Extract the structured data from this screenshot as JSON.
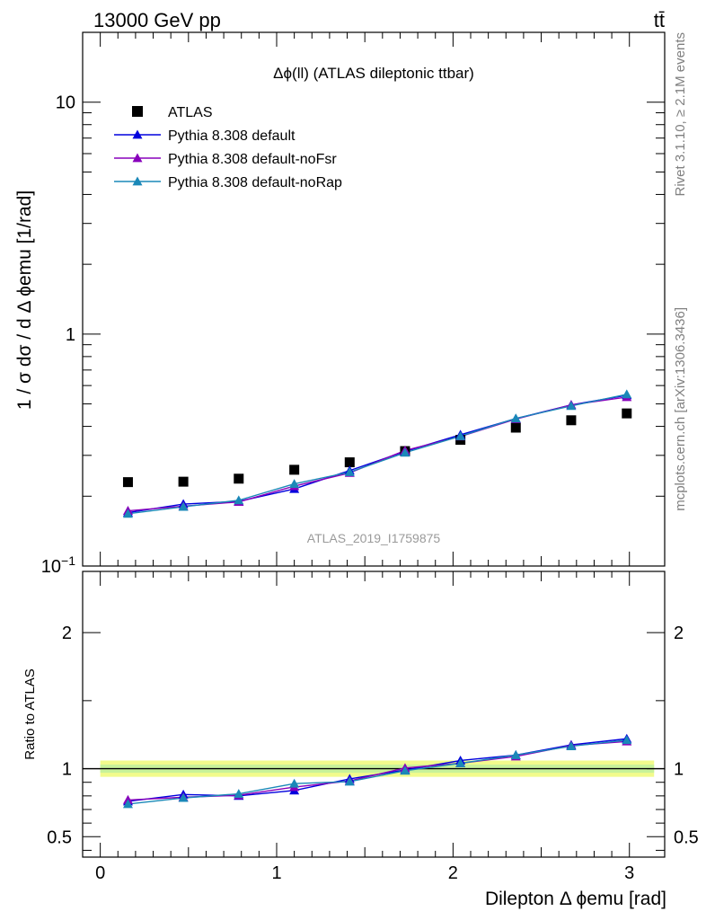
{
  "header": {
    "energy": "13000 GeV pp",
    "process": "tt̄"
  },
  "side_labels": {
    "rivet": "Rivet 3.1.10, ≥ 2.1M events",
    "mcplots": "mcplots.cern.ch [arXiv:1306.3436]"
  },
  "chart_data": [
    {
      "type": "scatter",
      "title": "Δϕ(ll) (ATLAS dileptonic ttbar)",
      "watermark": "ATLAS_2019_I1759875",
      "ylabel": "1 / σ  dσ / d Δ ϕemu [1/rad]",
      "yscale": "log",
      "ylim": [
        0.1,
        20
      ],
      "xlim": [
        -0.1,
        3.2
      ],
      "yticks": [
        {
          "v": 0.1,
          "label": "10−1"
        },
        {
          "v": 1,
          "label": "1"
        },
        {
          "v": 10,
          "label": "10"
        }
      ],
      "x": [
        0.157,
        0.471,
        0.785,
        1.1,
        1.414,
        1.728,
        2.042,
        2.356,
        2.67,
        2.985
      ],
      "series": [
        {
          "name": "ATLAS",
          "color": "#000000",
          "marker": "square",
          "values": [
            0.23,
            0.231,
            0.238,
            0.26,
            0.28,
            0.313,
            0.35,
            0.395,
            0.425,
            0.455
          ]
        },
        {
          "name": "Pythia 8.308 default",
          "color": "#0000dd",
          "marker": "triangle",
          "values": [
            0.17,
            0.185,
            0.19,
            0.215,
            0.258,
            0.312,
            0.368,
            0.432,
            0.495,
            0.545
          ]
        },
        {
          "name": "Pythia 8.308 default-noFsr",
          "color": "#8800bb",
          "marker": "triangle",
          "values": [
            0.173,
            0.181,
            0.189,
            0.221,
            0.252,
            0.315,
            0.362,
            0.43,
            0.495,
            0.535
          ]
        },
        {
          "name": "Pythia 8.308 default-noRap",
          "color": "#1a88b8",
          "marker": "triangle",
          "values": [
            0.168,
            0.18,
            0.192,
            0.226,
            0.254,
            0.308,
            0.363,
            0.433,
            0.49,
            0.55
          ]
        }
      ]
    },
    {
      "type": "line",
      "ylabel": "Ratio to ATLAS",
      "xlabel": "Dilepton Δ ϕemu [rad]",
      "ylim": [
        0.35,
        2.45
      ],
      "xlim": [
        -0.1,
        3.2
      ],
      "yticks": [
        {
          "v": 0.5,
          "label": "0.5"
        },
        {
          "v": 1,
          "label": "1"
        },
        {
          "v": 2,
          "label": "2"
        }
      ],
      "xticks": [
        {
          "v": 0,
          "label": "0"
        },
        {
          "v": 1,
          "label": "1"
        },
        {
          "v": 2,
          "label": "2"
        },
        {
          "v": 3,
          "label": "3"
        }
      ],
      "x": [
        0.157,
        0.471,
        0.785,
        1.1,
        1.414,
        1.728,
        2.042,
        2.356,
        2.67,
        2.985
      ],
      "band": {
        "outer": 0.06,
        "inner": 0.03
      },
      "series": [
        {
          "name": "Pythia 8.308 default",
          "color": "#0000dd",
          "values": [
            0.76,
            0.81,
            0.8,
            0.84,
            0.925,
            0.99,
            1.06,
            1.1,
            1.175,
            1.22
          ]
        },
        {
          "name": "Pythia 8.308 default-noFsr",
          "color": "#8800bb",
          "values": [
            0.77,
            0.79,
            0.805,
            0.865,
            0.91,
            1.005,
            1.04,
            1.09,
            1.17,
            1.2
          ]
        },
        {
          "name": "Pythia 8.308 default-noRap",
          "color": "#1a88b8",
          "values": [
            0.74,
            0.785,
            0.815,
            0.89,
            0.905,
            0.985,
            1.04,
            1.1,
            1.165,
            1.21
          ]
        }
      ]
    }
  ]
}
